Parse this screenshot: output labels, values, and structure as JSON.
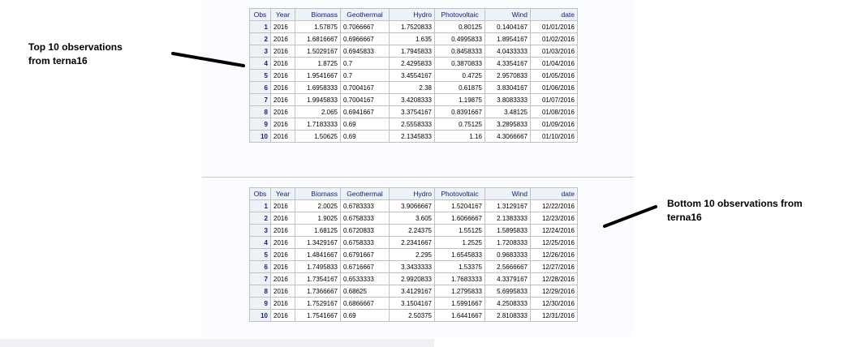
{
  "columns": [
    "Obs",
    "Year",
    "Biomass",
    "Geothermal",
    "Hydro",
    "Photovoltaic",
    "Wind",
    "date"
  ],
  "top_table": {
    "rows": [
      [
        "1",
        "2016",
        "1.57875",
        "0.7066667",
        "1.7520833",
        "0.80125",
        "0.1404167",
        "01/01/2016"
      ],
      [
        "2",
        "2016",
        "1.6816667",
        "0.6966667",
        "1.635",
        "0.4995833",
        "1.8954167",
        "01/02/2016"
      ],
      [
        "3",
        "2016",
        "1.5029167",
        "0.6945833",
        "1.7945833",
        "0.8458333",
        "4.0433333",
        "01/03/2016"
      ],
      [
        "4",
        "2016",
        "1.8725",
        "0.7",
        "2.4295833",
        "0.3870833",
        "4.3354167",
        "01/04/2016"
      ],
      [
        "5",
        "2016",
        "1.9541667",
        "0.7",
        "3.4554167",
        "0.4725",
        "2.9570833",
        "01/05/2016"
      ],
      [
        "6",
        "2016",
        "1.6958333",
        "0.7004167",
        "2.38",
        "0.61875",
        "3.8304167",
        "01/06/2016"
      ],
      [
        "7",
        "2016",
        "1.9945833",
        "0.7004167",
        "3.4208333",
        "1.19875",
        "3.8083333",
        "01/07/2016"
      ],
      [
        "8",
        "2016",
        "2.065",
        "0.6941667",
        "3.3754167",
        "0.8391667",
        "3.48125",
        "01/08/2016"
      ],
      [
        "9",
        "2016",
        "1.7183333",
        "0.69",
        "2.5558333",
        "0.75125",
        "3.2895833",
        "01/09/2016"
      ],
      [
        "10",
        "2016",
        "1.50625",
        "0.69",
        "2.1345833",
        "1.16",
        "4.3066667",
        "01/10/2016"
      ]
    ]
  },
  "bottom_table": {
    "rows": [
      [
        "1",
        "2016",
        "2.0025",
        "0.6783333",
        "3.9066667",
        "1.5204167",
        "1.3129167",
        "12/22/2016"
      ],
      [
        "2",
        "2016",
        "1.9025",
        "0.6758333",
        "3.605",
        "1.6066667",
        "2.1383333",
        "12/23/2016"
      ],
      [
        "3",
        "2016",
        "1.68125",
        "0.6720833",
        "2.24375",
        "1.55125",
        "1.5895833",
        "12/24/2016"
      ],
      [
        "4",
        "2016",
        "1.3429167",
        "0.6758333",
        "2.2341667",
        "1.2525",
        "1.7208333",
        "12/25/2016"
      ],
      [
        "5",
        "2016",
        "1.4841667",
        "0.6791667",
        "2.295",
        "1.6545833",
        "0.9683333",
        "12/26/2016"
      ],
      [
        "6",
        "2016",
        "1.7495833",
        "0.6716667",
        "3.3433333",
        "1.53375",
        "2.5666667",
        "12/27/2016"
      ],
      [
        "7",
        "2016",
        "1.7354167",
        "0.6533333",
        "2.9920833",
        "1.7683333",
        "4.3379167",
        "12/28/2016"
      ],
      [
        "8",
        "2016",
        "1.7366667",
        "0.68625",
        "3.4129167",
        "1.2795833",
        "5.6995833",
        "12/29/2016"
      ],
      [
        "9",
        "2016",
        "1.7529167",
        "0.6866667",
        "3.1504167",
        "1.5991667",
        "4.2508333",
        "12/30/2016"
      ],
      [
        "10",
        "2016",
        "1.7541667",
        "0.69",
        "2.50375",
        "1.6441667",
        "2.8108333",
        "12/31/2016"
      ]
    ]
  },
  "annotations": {
    "top_line1": "Top 10 observations",
    "top_line2": "from terna16",
    "bottom_line1": "Bottom 10 observations from",
    "bottom_line2": "terna16"
  }
}
